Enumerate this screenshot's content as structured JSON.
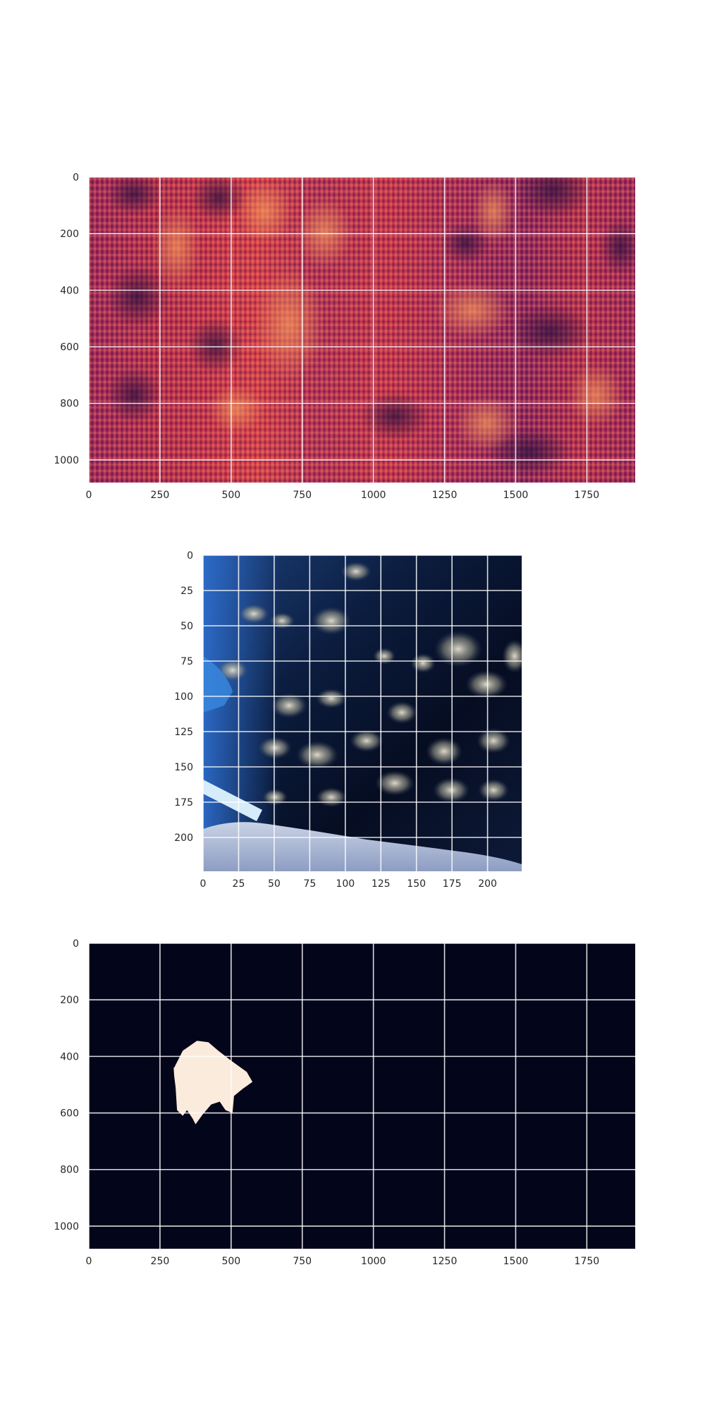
{
  "chart_data": [
    {
      "type": "heatmap",
      "description_hidden": false,
      "xlim": [
        0,
        1920
      ],
      "ylim": [
        1080,
        0
      ],
      "x_ticks": [
        0,
        250,
        500,
        750,
        1000,
        1250,
        1500,
        1750
      ],
      "y_ticks": [
        0,
        200,
        400,
        600,
        800,
        1000
      ],
      "x_tick_labels": [
        "0",
        "250",
        "500",
        "750",
        "1000",
        "1250",
        "1500",
        "1750"
      ],
      "y_tick_labels": [
        "0",
        "200",
        "400",
        "600",
        "800",
        "1000"
      ],
      "grid": true,
      "colormap": [
        "#2d1140",
        "#5c1a5a",
        "#9a1f5c",
        "#c42c4d",
        "#e34a3f",
        "#f28a5a"
      ]
    },
    {
      "type": "heatmap",
      "xlim": [
        0,
        224
      ],
      "ylim": [
        224,
        0
      ],
      "x_ticks": [
        0,
        25,
        50,
        75,
        100,
        125,
        150,
        175,
        200
      ],
      "y_ticks": [
        0,
        25,
        50,
        75,
        100,
        125,
        150,
        175,
        200
      ],
      "x_tick_labels": [
        "0",
        "25",
        "50",
        "75",
        "100",
        "125",
        "150",
        "175",
        "200"
      ],
      "y_tick_labels": [
        "0",
        "25",
        "50",
        "75",
        "100",
        "125",
        "150",
        "175",
        "200"
      ],
      "grid": true
    },
    {
      "type": "heatmap",
      "xlim": [
        0,
        1920
      ],
      "ylim": [
        1080,
        0
      ],
      "x_ticks": [
        0,
        250,
        500,
        750,
        1000,
        1250,
        1500,
        1750
      ],
      "y_ticks": [
        0,
        200,
        400,
        600,
        800,
        1000
      ],
      "x_tick_labels": [
        "0",
        "250",
        "500",
        "750",
        "1000",
        "1250",
        "1500",
        "1750"
      ],
      "y_tick_labels": [
        "0",
        "200",
        "400",
        "600",
        "800",
        "1000"
      ],
      "grid": true,
      "background_color": "#03051a",
      "mask_color": "#faebdd",
      "mask_polygon": [
        [
          300,
          440
        ],
        [
          330,
          380
        ],
        [
          380,
          345
        ],
        [
          420,
          350
        ],
        [
          455,
          380
        ],
        [
          500,
          415
        ],
        [
          555,
          455
        ],
        [
          575,
          490
        ],
        [
          540,
          515
        ],
        [
          510,
          540
        ],
        [
          505,
          600
        ],
        [
          480,
          590
        ],
        [
          460,
          560
        ],
        [
          430,
          570
        ],
        [
          400,
          605
        ],
        [
          375,
          640
        ],
        [
          365,
          620
        ],
        [
          345,
          590
        ],
        [
          330,
          610
        ],
        [
          310,
          590
        ],
        [
          305,
          510
        ],
        [
          300,
          470
        ],
        [
          298,
          440
        ]
      ]
    }
  ]
}
